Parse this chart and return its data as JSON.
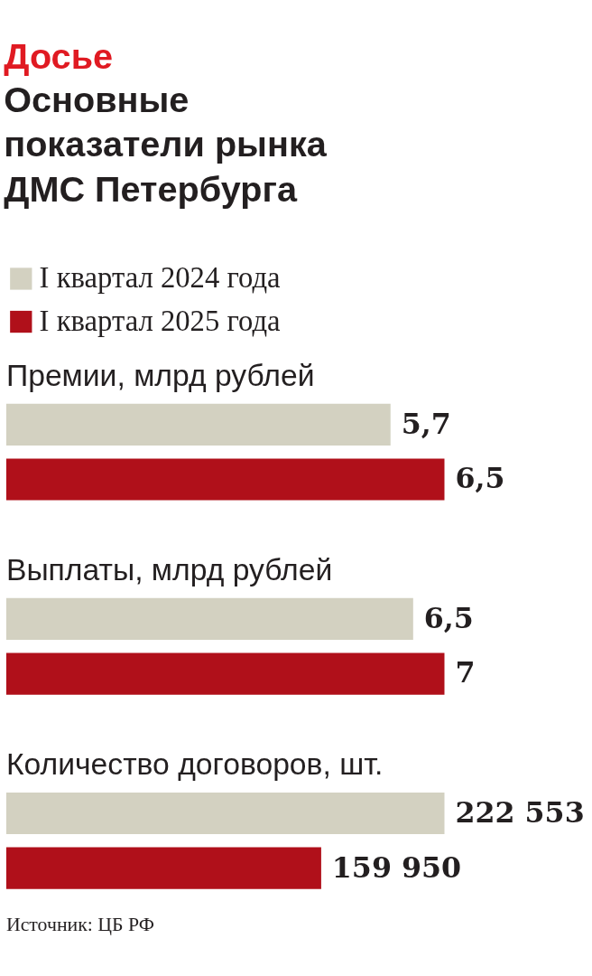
{
  "chart_data": [
    {
      "type": "other",
      "title": "Досье",
      "subtitle": "Основные показатели рынка ДМС Петербурга"
    },
    {
      "type": "bar",
      "orientation": "horizontal",
      "title": "Премии, млрд рублей",
      "categories": [
        null
      ],
      "tick_labels": false,
      "legend": "top left",
      "series": [
        {
          "name": "I квартал 2024 года",
          "color": "#d3d1c1",
          "values": [
            5.7
          ],
          "value_labels": [
            "5,7"
          ]
        },
        {
          "name": "I квартал 2025 года",
          "color": "#b0101a",
          "values": [
            6.5
          ],
          "value_labels": [
            "6,5"
          ]
        }
      ]
    },
    {
      "type": "bar",
      "orientation": "horizontal",
      "title": "Выплаты, млрд рублей",
      "categories": [
        null
      ],
      "tick_labels": false,
      "series": [
        {
          "color": "#d3d1c1",
          "values": [
            6.5
          ],
          "value_labels": [
            "6,5"
          ]
        },
        {
          "color": "#b0101a",
          "values": [
            7
          ],
          "value_labels": [
            "7"
          ]
        }
      ]
    },
    {
      "type": "bar",
      "orientation": "horizontal",
      "title": "Количество договоров, шт.",
      "categories": [
        null
      ],
      "tick_labels": false,
      "annotations": [
        "Источник: ЦБ РФ"
      ],
      "series": [
        {
          "color": "#d3d1c1",
          "values": [
            222553
          ],
          "value_labels": [
            "222 553"
          ]
        },
        {
          "color": "#b0101a",
          "values": [
            159950
          ],
          "value_labels": [
            "159 950"
          ]
        }
      ]
    }
  ]
}
